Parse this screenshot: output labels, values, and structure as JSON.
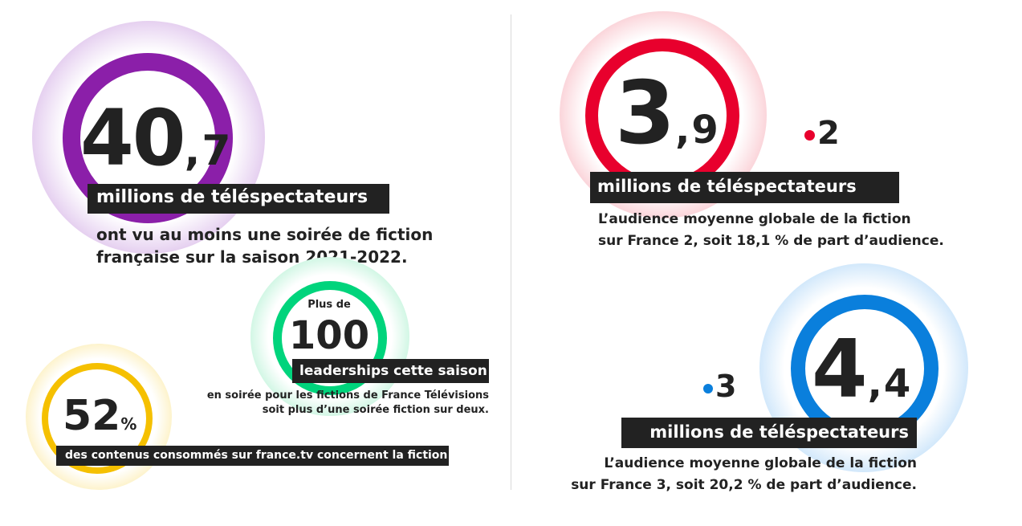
{
  "stat_viewers": {
    "integer": "40",
    "decimal": ",7",
    "unit_label": "millions de téléspectateurs",
    "desc_lines": [
      "ont vu au moins une soirée de fiction",
      "française sur la saison 2021-2022."
    ],
    "color": "#8b1fa9"
  },
  "stat_leaderships": {
    "prefix": "Plus de",
    "value": "100",
    "unit_label": "leaderships cette saison",
    "desc_lines": [
      "en soirée pour les fictions de France Télévisions",
      "soit plus d’une soirée fiction sur deux."
    ],
    "color": "#00d47c"
  },
  "stat_share": {
    "value": "52",
    "suffix": "%",
    "unit_label": "des contenus consommés sur france.tv concernent la fiction",
    "color": "#f5c000"
  },
  "stat_france2": {
    "integer": "3",
    "decimal": ",9",
    "channel": "2",
    "unit_label": "millions de téléspectateurs",
    "desc_lines": [
      "L’audience moyenne globale de la fiction",
      "sur France 2, soit 18,1 % de part d’audience."
    ],
    "color": "#e8002d"
  },
  "stat_france3": {
    "integer": "4",
    "decimal": ",4",
    "channel": "3",
    "unit_label": "millions de téléspectateurs",
    "desc_lines": [
      "L’audience moyenne globale de la fiction",
      "sur France 3, soit 20,2 % de part d’audience."
    ],
    "color": "#0a7fdc"
  }
}
